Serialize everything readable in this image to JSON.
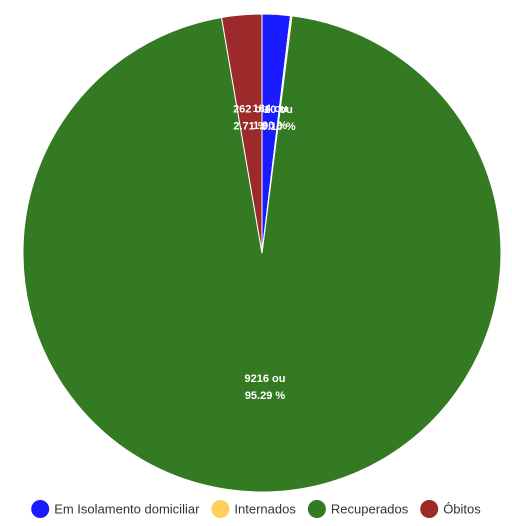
{
  "chart_data": {
    "type": "pie",
    "start_angle_deg": 0,
    "direction": "clockwise",
    "slices": [
      {
        "name": "Em Isolamento domiciliar",
        "count": 184,
        "percent": 1.9,
        "color": "#1a1aff",
        "label": {
          "line1": "184 ou",
          "line2": "1.90 %"
        }
      },
      {
        "name": "Internados",
        "count": 10,
        "percent": 0.1,
        "color": "#ffd05a",
        "label": {
          "line1": "10 ou",
          "line2": "0.10 %"
        }
      },
      {
        "name": "Recuperados",
        "count": 9216,
        "percent": 95.29,
        "color": "#347a23",
        "label": {
          "line1": "9216 ou",
          "line2": "95.29 %"
        }
      },
      {
        "name": "Óbitos",
        "count": 262,
        "percent": 2.71,
        "color": "#9c2a2a",
        "label": {
          "line1": "262 ou",
          "line2": "2.71 %"
        }
      }
    ],
    "legend_position": "bottom"
  }
}
